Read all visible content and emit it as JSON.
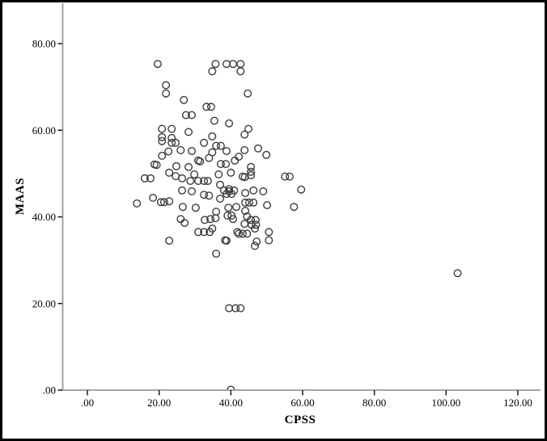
{
  "chart_data": {
    "type": "scatter",
    "title": "",
    "xlabel": "CPSS",
    "ylabel": "MAAS",
    "xlim": [
      -7,
      126
    ],
    "ylim": [
      0,
      89
    ],
    "grid": false,
    "legend": null,
    "marker": {
      "shape": "open-circle",
      "color": "#3c3c3c"
    },
    "colors": {
      "axis_line": "#9a9a9a",
      "tick": "#1a1a1a",
      "text": "#000000",
      "frame": "#000000",
      "background": "#ffffff"
    },
    "x_ticks": [
      {
        "value": 0,
        "label": ".00"
      },
      {
        "value": 20,
        "label": "20.00"
      },
      {
        "value": 40,
        "label": "40.00"
      },
      {
        "value": 60,
        "label": "60.00"
      },
      {
        "value": 80,
        "label": "80.00"
      },
      {
        "value": 100,
        "label": "100.00"
      },
      {
        "value": 120,
        "label": "120.00"
      }
    ],
    "y_ticks": [
      {
        "value": 0,
        "label": ".00"
      },
      {
        "value": 20,
        "label": "20.00"
      },
      {
        "value": 40,
        "label": "40.00"
      },
      {
        "value": 60,
        "label": "60.00"
      },
      {
        "value": 80,
        "label": "80.00"
      }
    ],
    "points": [
      [
        19.6,
        75.3
      ],
      [
        21.9,
        70.4
      ],
      [
        21.9,
        68.5
      ],
      [
        26.9,
        67.0
      ],
      [
        27.5,
        63.5
      ],
      [
        20.8,
        60.3
      ],
      [
        23.5,
        60.3
      ],
      [
        20.8,
        58.4
      ],
      [
        23.5,
        58.2
      ],
      [
        35.7,
        75.3
      ],
      [
        38.8,
        75.3
      ],
      [
        40.6,
        75.3
      ],
      [
        42.7,
        75.3
      ],
      [
        34.8,
        73.6
      ],
      [
        42.7,
        73.6
      ],
      [
        44.7,
        68.5
      ],
      [
        33.2,
        65.4
      ],
      [
        34.5,
        65.4
      ],
      [
        29.1,
        63.5
      ],
      [
        35.4,
        62.2
      ],
      [
        39.5,
        61.6
      ],
      [
        44.9,
        60.3
      ],
      [
        43.8,
        59.0
      ],
      [
        28.2,
        59.6
      ],
      [
        34.8,
        58.6
      ],
      [
        20.8,
        57.5
      ],
      [
        23.5,
        57.1
      ],
      [
        24.6,
        57.1
      ],
      [
        22.6,
        55.1
      ],
      [
        26.0,
        55.4
      ],
      [
        20.8,
        54.1
      ],
      [
        18.7,
        52.1
      ],
      [
        19.3,
        52.0
      ],
      [
        24.8,
        51.7
      ],
      [
        22.8,
        50.2
      ],
      [
        16.0,
        48.9
      ],
      [
        17.6,
        48.9
      ],
      [
        24.6,
        49.4
      ],
      [
        26.4,
        48.9
      ],
      [
        26.4,
        46.1
      ],
      [
        18.3,
        44.4
      ],
      [
        20.5,
        43.4
      ],
      [
        21.4,
        43.4
      ],
      [
        13.8,
        43.1
      ],
      [
        22.8,
        43.6
      ],
      [
        26.6,
        42.3
      ],
      [
        26.0,
        39.5
      ],
      [
        27.1,
        38.6
      ],
      [
        32.5,
        57.1
      ],
      [
        35.9,
        56.4
      ],
      [
        37.2,
        56.4
      ],
      [
        29.1,
        55.2
      ],
      [
        34.8,
        54.9
      ],
      [
        38.8,
        55.2
      ],
      [
        43.8,
        55.4
      ],
      [
        47.6,
        55.8
      ],
      [
        49.9,
        54.3
      ],
      [
        30.9,
        53.0
      ],
      [
        31.4,
        52.8
      ],
      [
        33.9,
        53.6
      ],
      [
        37.2,
        52.2
      ],
      [
        38.6,
        52.2
      ],
      [
        41.1,
        53.0
      ],
      [
        42.2,
        53.9
      ],
      [
        28.2,
        51.5
      ],
      [
        45.6,
        51.5
      ],
      [
        45.6,
        50.4
      ],
      [
        29.8,
        49.8
      ],
      [
        36.6,
        49.8
      ],
      [
        40.0,
        50.2
      ],
      [
        43.3,
        49.3
      ],
      [
        43.9,
        49.2
      ],
      [
        45.6,
        49.6
      ],
      [
        28.7,
        48.3
      ],
      [
        30.9,
        48.3
      ],
      [
        32.5,
        48.3
      ],
      [
        33.6,
        48.3
      ],
      [
        37.0,
        47.4
      ],
      [
        39.5,
        46.4
      ],
      [
        38.1,
        46.1
      ],
      [
        40.9,
        46.1
      ],
      [
        39.5,
        45.9
      ],
      [
        38.8,
        45.3
      ],
      [
        40.2,
        45.3
      ],
      [
        29.1,
        45.9
      ],
      [
        32.5,
        45.1
      ],
      [
        33.9,
        44.9
      ],
      [
        37.0,
        44.2
      ],
      [
        44.0,
        45.5
      ],
      [
        46.3,
        46.1
      ],
      [
        49.0,
        45.9
      ],
      [
        44.0,
        43.3
      ],
      [
        45.1,
        43.3
      ],
      [
        46.3,
        43.3
      ],
      [
        30.2,
        42.1
      ],
      [
        35.9,
        41.2
      ],
      [
        39.3,
        42.1
      ],
      [
        41.5,
        42.3
      ],
      [
        39.1,
        40.3
      ],
      [
        40.2,
        40.3
      ],
      [
        44.0,
        41.4
      ],
      [
        32.7,
        39.3
      ],
      [
        34.3,
        39.5
      ],
      [
        35.7,
        39.7
      ],
      [
        40.6,
        39.5
      ],
      [
        45.6,
        39.3
      ],
      [
        46.9,
        39.3
      ],
      [
        55.1,
        49.3
      ],
      [
        56.4,
        49.3
      ],
      [
        59.6,
        46.3
      ],
      [
        57.6,
        42.3
      ],
      [
        50.1,
        42.7
      ],
      [
        30.9,
        36.5
      ],
      [
        32.5,
        36.5
      ],
      [
        34.1,
        36.5
      ],
      [
        34.8,
        37.3
      ],
      [
        44.5,
        40.1
      ],
      [
        43.8,
        38.4
      ],
      [
        45.8,
        38.2
      ],
      [
        47.0,
        38.2
      ],
      [
        41.8,
        36.5
      ],
      [
        42.2,
        36.1
      ],
      [
        43.3,
        36.1
      ],
      [
        44.5,
        36.1
      ],
      [
        38.4,
        34.6
      ],
      [
        46.7,
        37.3
      ],
      [
        47.2,
        34.3
      ],
      [
        22.8,
        34.5
      ],
      [
        38.8,
        34.5
      ],
      [
        46.7,
        33.3
      ],
      [
        35.9,
        31.5
      ],
      [
        50.6,
        36.5
      ],
      [
        50.6,
        34.6
      ],
      [
        39.5,
        18.9
      ],
      [
        41.3,
        18.9
      ],
      [
        42.7,
        18.9
      ],
      [
        103.2,
        27.0
      ],
      [
        40.0,
        0.1
      ]
    ]
  }
}
